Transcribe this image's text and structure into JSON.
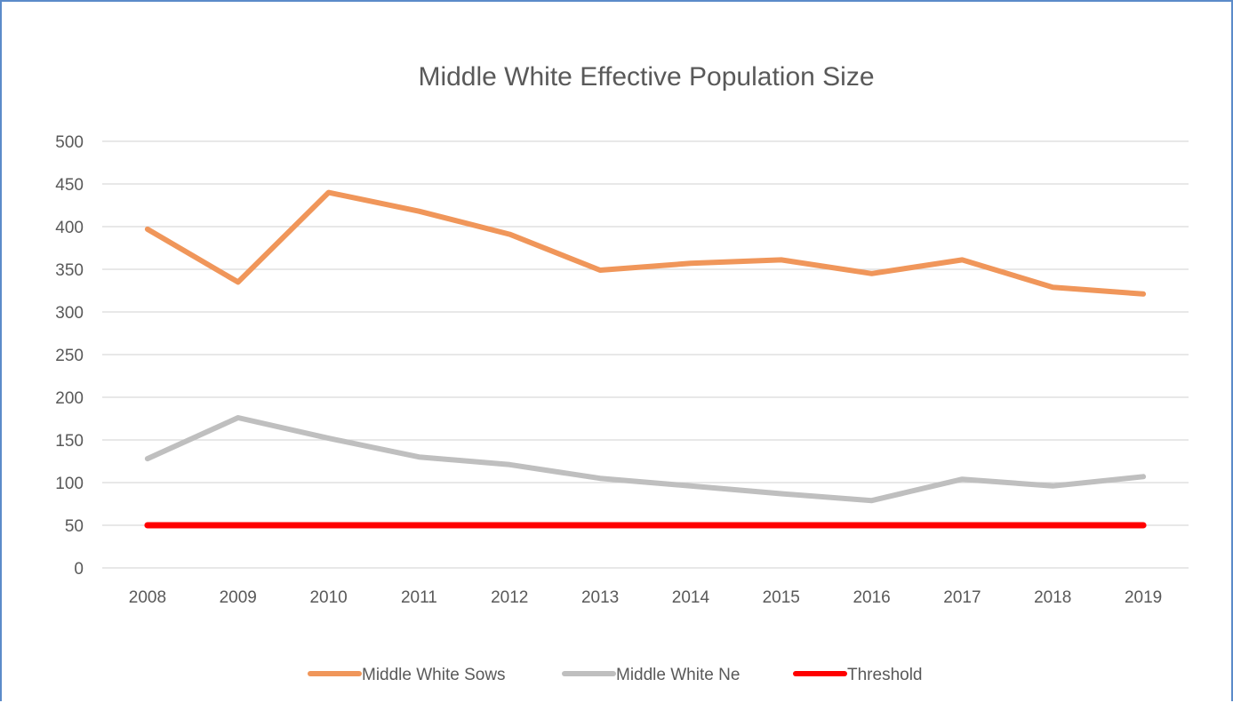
{
  "chart_data": {
    "type": "line",
    "title": "Middle White Effective Population Size",
    "categories": [
      "2008",
      "2009",
      "2010",
      "2011",
      "2012",
      "2013",
      "2014",
      "2015",
      "2016",
      "2017",
      "2018",
      "2019"
    ],
    "ylim": [
      0,
      500
    ],
    "yticks": [
      0,
      50,
      100,
      150,
      200,
      250,
      300,
      350,
      400,
      450,
      500
    ],
    "grid": true,
    "legend_position": "bottom",
    "series": [
      {
        "name": "Middle White Sows",
        "color": "#f0965a",
        "values": [
          397,
          335,
          440,
          418,
          391,
          349,
          357,
          361,
          345,
          361,
          329,
          321
        ]
      },
      {
        "name": "Middle White Ne",
        "color": "#bfbfbf",
        "values": [
          128,
          176,
          152,
          130,
          121,
          105,
          96,
          87,
          79,
          104,
          96,
          107
        ]
      },
      {
        "name": "Threshold",
        "color": "#ff0000",
        "values": [
          50,
          50,
          50,
          50,
          50,
          50,
          50,
          50,
          50,
          50,
          50,
          50
        ]
      }
    ]
  }
}
